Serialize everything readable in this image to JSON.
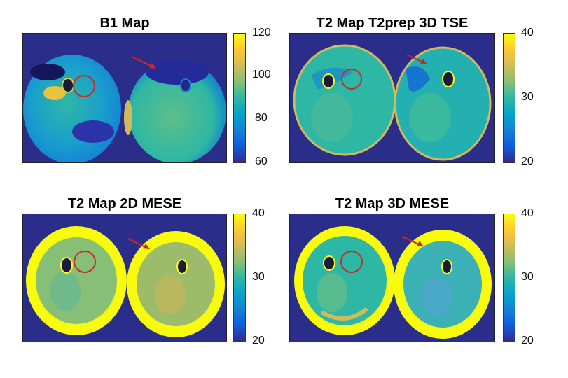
{
  "panels": [
    {
      "title": "B1 Map",
      "colorbar": {
        "ticks": [
          "120",
          "100",
          "80",
          "60"
        ]
      }
    },
    {
      "title": "T2 Map T2prep 3D TSE",
      "colorbar": {
        "ticks": [
          "40",
          "30",
          "20"
        ]
      }
    },
    {
      "title": "T2 Map 2D MESE",
      "colorbar": {
        "ticks": [
          "40",
          "30",
          "20"
        ]
      }
    },
    {
      "title": "T2 Map 3D MESE",
      "colorbar": {
        "ticks": [
          "40",
          "30",
          "20"
        ]
      }
    }
  ],
  "colors": {
    "background": "#2b2d8a",
    "roi_circle": "#c0302a",
    "arrow": "#d0281f",
    "parula": [
      "#352a87",
      "#0f5cdd",
      "#1481d6",
      "#06a4ca",
      "#2eb7a4",
      "#87bf77",
      "#d1bb59",
      "#fec832",
      "#f9fb0e"
    ]
  }
}
